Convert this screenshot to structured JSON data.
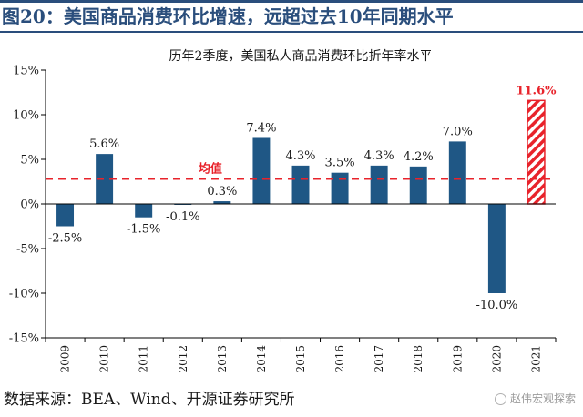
{
  "figure": {
    "title": "图20：美国商品消费环比增速，远超过去10年同期水平",
    "source": "数据来源：BEA、Wind、开源证券研究所",
    "watermark": "赵伟宏观探索"
  },
  "colors": {
    "bar": "#1f5785",
    "highlight": "#e8232b",
    "avg_line": "#e8232b",
    "title": "#2a4e7c"
  },
  "chart_data": {
    "type": "bar",
    "title": "历年2季度，美国私人商品消费环比折年率水平",
    "categories": [
      "2009",
      "2010",
      "2011",
      "2012",
      "2013",
      "2014",
      "2015",
      "2016",
      "2017",
      "2018",
      "2019",
      "2020",
      "2021"
    ],
    "values": [
      -2.5,
      5.6,
      -1.5,
      -0.1,
      0.3,
      7.4,
      4.3,
      3.5,
      4.3,
      4.2,
      7.0,
      -10.0,
      11.6
    ],
    "data_labels": [
      "-2.5%",
      "5.6%",
      "-1.5%",
      "-0.1%",
      "0.3%",
      "7.4%",
      "4.3%",
      "3.5%",
      "4.3%",
      "4.2%",
      "7.0%",
      "-10.0%",
      "11.6%"
    ],
    "highlight_category": "2021",
    "y_ticks": [
      15,
      10,
      5,
      0,
      -5,
      -10,
      -15
    ],
    "y_tick_labels": [
      "15%",
      "10%",
      "5%",
      "0%",
      "-5%",
      "-10%",
      "-15%"
    ],
    "ylim": [
      -15,
      15
    ],
    "reference_line": {
      "label": "均值",
      "value": 2.8
    },
    "grid": false,
    "xlabel": "",
    "ylabel": ""
  }
}
